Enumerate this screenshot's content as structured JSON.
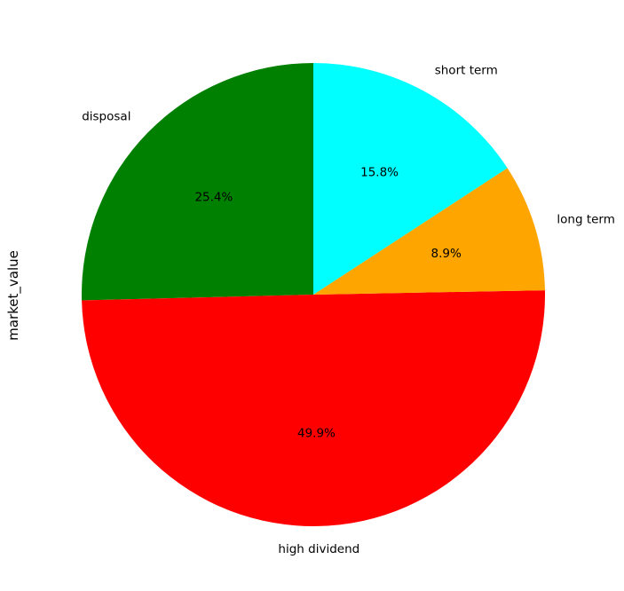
{
  "chart_data": {
    "type": "pie",
    "ylabel": "market_value",
    "start_angle_deg": 90,
    "direction": "counterclockwise",
    "slices": [
      {
        "label": "disposal",
        "percent": 25.4,
        "pct_label": "25.4%",
        "color": "#008000"
      },
      {
        "label": "high dividend",
        "percent": 49.9,
        "pct_label": "49.9%",
        "color": "#ff0000"
      },
      {
        "label": "long term",
        "percent": 8.9,
        "pct_label": "8.9%",
        "color": "#ffa500"
      },
      {
        "label": "short term",
        "percent": 15.8,
        "pct_label": "15.8%",
        "color": "#00ffff"
      }
    ]
  }
}
